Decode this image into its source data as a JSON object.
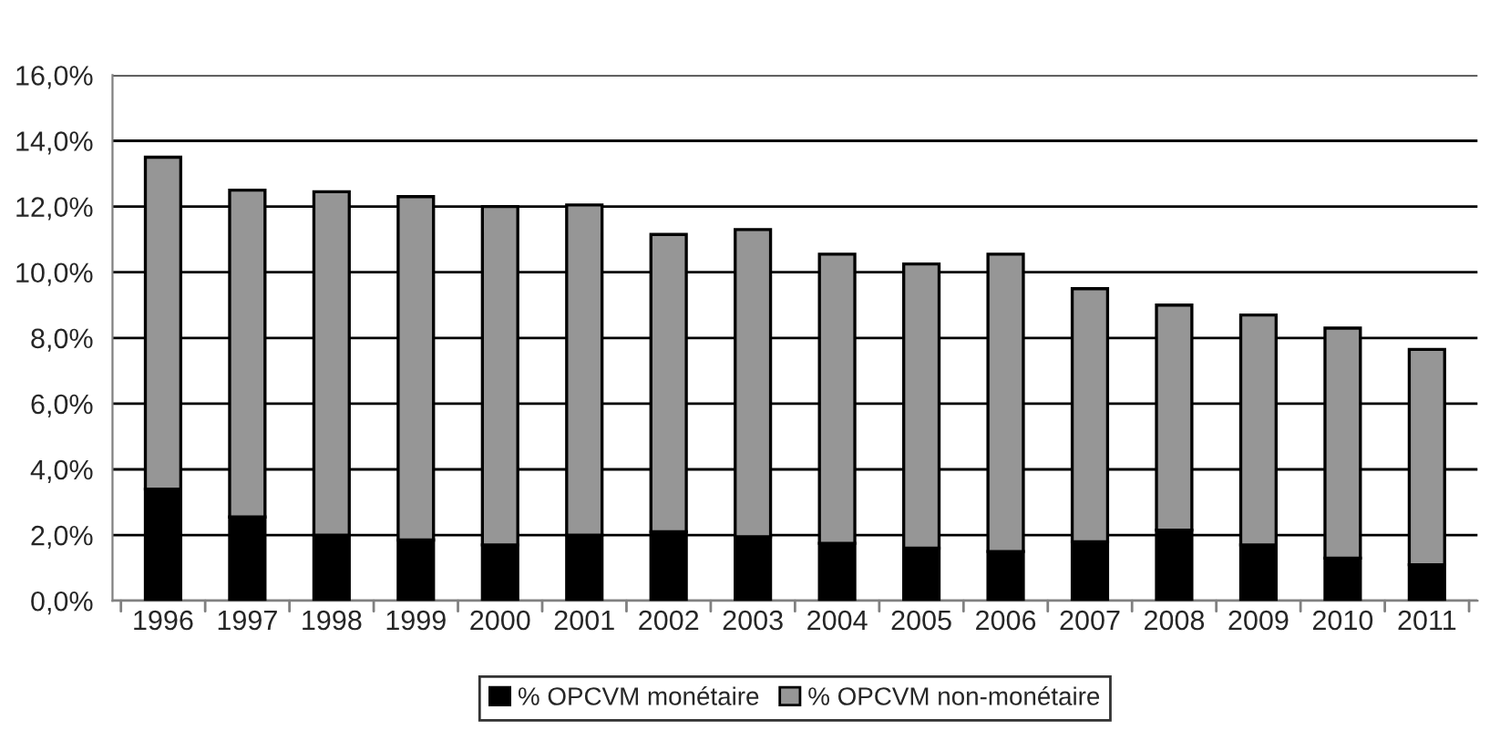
{
  "chart_data": {
    "type": "bar",
    "stacked": true,
    "categories": [
      "1996",
      "1997",
      "1998",
      "1999",
      "2000",
      "2001",
      "2002",
      "2003",
      "2004",
      "2005",
      "2006",
      "2007",
      "2008",
      "2009",
      "2010",
      "2011"
    ],
    "series": [
      {
        "name": "% OPCVM monétaire",
        "color": "#000000",
        "values": [
          3.4,
          2.55,
          2.0,
          1.85,
          1.7,
          2.0,
          2.1,
          1.95,
          1.75,
          1.6,
          1.5,
          1.8,
          2.15,
          1.7,
          1.3,
          1.1
        ]
      },
      {
        "name": "% OPCVM non-monétaire",
        "color": "#969696",
        "values": [
          10.1,
          9.95,
          10.45,
          10.45,
          10.3,
          10.05,
          9.05,
          9.35,
          8.8,
          8.65,
          9.05,
          7.7,
          6.85,
          7.0,
          7.0,
          6.55
        ]
      }
    ],
    "ylim": [
      0,
      16
    ],
    "yticks": [
      {
        "value": 0,
        "label": "0,0%"
      },
      {
        "value": 2,
        "label": "2,0%"
      },
      {
        "value": 4,
        "label": "4,0%"
      },
      {
        "value": 6,
        "label": "6,0%"
      },
      {
        "value": 8,
        "label": "8,0%"
      },
      {
        "value": 10,
        "label": "10,0%"
      },
      {
        "value": 12,
        "label": "12,0%"
      },
      {
        "value": 14,
        "label": "14,0%"
      },
      {
        "value": 16,
        "label": "16,0%"
      }
    ],
    "grid": "y",
    "legend": "bottom"
  }
}
